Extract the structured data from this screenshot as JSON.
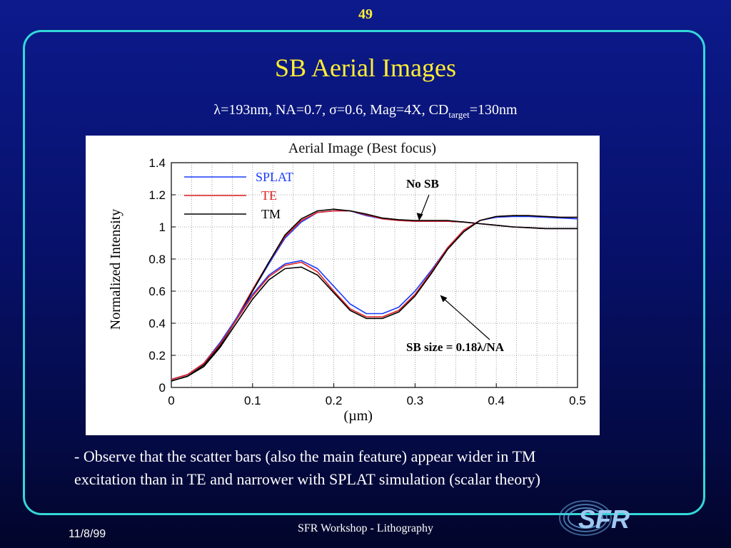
{
  "slide": {
    "number": "49",
    "title": "SB Aerial Images",
    "subtitle_main": "λ=193nm, NA=0.7, σ=0.6, Mag=4X, CD",
    "subtitle_sub": "target",
    "subtitle_end": "=130nm",
    "caption_line1": "- Observe that the scatter bars (also the main feature) appear wider in TM",
    "caption_line2": "excitation than in TE and narrower with SPLAT simulation (scalar theory)",
    "footer_date": "11/8/99",
    "footer_center": "SFR Workshop - Lithography",
    "logo_text": "SFR"
  },
  "colors": {
    "background": "#07116a",
    "frame": "#33d8d8",
    "title": "#ffee33",
    "splat": "#1a3cff",
    "te": "#e02020",
    "tm": "#000000"
  },
  "chart_data": {
    "type": "line",
    "title": "Aerial Image (Best focus)",
    "xlabel": "(µm)",
    "ylabel": "Normalized Intensity",
    "xlim": [
      0,
      0.5
    ],
    "ylim": [
      0,
      1.4
    ],
    "xticks": [
      "0",
      "0.1",
      "0.2",
      "0.3",
      "0.4",
      "0.5"
    ],
    "yticks": [
      "0",
      "0.2",
      "0.4",
      "0.6",
      "0.8",
      "1",
      "1.2",
      "1.4"
    ],
    "grid": true,
    "legend": [
      "SPLAT",
      "TE",
      "TM"
    ],
    "legend_position": "top-left",
    "annotations": [
      {
        "text": "No SB",
        "points_to": [
          0.305,
          1.03
        ]
      },
      {
        "text": "SB size = 0.18λ/NA",
        "points_to": [
          0.33,
          0.58
        ]
      }
    ],
    "series": [
      {
        "name": "SPLAT",
        "group": "No SB",
        "x": [
          0,
          0.02,
          0.04,
          0.06,
          0.08,
          0.1,
          0.12,
          0.14,
          0.16,
          0.18,
          0.2,
          0.22,
          0.24,
          0.26,
          0.28,
          0.3,
          0.32,
          0.34,
          0.36,
          0.38,
          0.4,
          0.42,
          0.44,
          0.46,
          0.48,
          0.5
        ],
        "y": [
          0.05,
          0.08,
          0.15,
          0.27,
          0.43,
          0.6,
          0.77,
          0.93,
          1.03,
          1.09,
          1.1,
          1.1,
          1.07,
          1.05,
          1.04,
          1.035,
          1.035,
          1.035,
          1.03,
          1.02,
          1.01,
          1.0,
          0.995,
          0.99,
          0.99,
          0.99
        ]
      },
      {
        "name": "TE",
        "group": "No SB",
        "x": [
          0,
          0.02,
          0.04,
          0.06,
          0.08,
          0.1,
          0.12,
          0.14,
          0.16,
          0.18,
          0.2,
          0.22,
          0.24,
          0.26,
          0.28,
          0.3,
          0.32,
          0.34,
          0.36,
          0.38,
          0.4,
          0.42,
          0.44,
          0.46,
          0.48,
          0.5
        ],
        "y": [
          0.05,
          0.08,
          0.15,
          0.27,
          0.43,
          0.61,
          0.78,
          0.94,
          1.04,
          1.09,
          1.1,
          1.1,
          1.075,
          1.05,
          1.04,
          1.035,
          1.035,
          1.035,
          1.03,
          1.02,
          1.01,
          1.0,
          0.995,
          0.99,
          0.99,
          0.99
        ]
      },
      {
        "name": "TM",
        "group": "No SB",
        "x": [
          0,
          0.02,
          0.04,
          0.06,
          0.08,
          0.1,
          0.12,
          0.14,
          0.16,
          0.18,
          0.2,
          0.22,
          0.24,
          0.26,
          0.28,
          0.3,
          0.32,
          0.34,
          0.36,
          0.38,
          0.4,
          0.42,
          0.44,
          0.46,
          0.48,
          0.5
        ],
        "y": [
          0.04,
          0.07,
          0.14,
          0.26,
          0.42,
          0.6,
          0.78,
          0.95,
          1.05,
          1.1,
          1.11,
          1.1,
          1.08,
          1.055,
          1.045,
          1.04,
          1.04,
          1.04,
          1.03,
          1.02,
          1.01,
          1.0,
          0.995,
          0.99,
          0.99,
          0.99
        ]
      },
      {
        "name": "SPLAT",
        "group": "SB",
        "x": [
          0,
          0.02,
          0.04,
          0.06,
          0.08,
          0.1,
          0.12,
          0.14,
          0.16,
          0.18,
          0.2,
          0.22,
          0.24,
          0.26,
          0.28,
          0.3,
          0.32,
          0.34,
          0.36,
          0.38,
          0.4,
          0.42,
          0.44,
          0.46,
          0.48,
          0.5
        ],
        "y": [
          0.05,
          0.08,
          0.15,
          0.28,
          0.43,
          0.58,
          0.7,
          0.77,
          0.79,
          0.74,
          0.63,
          0.52,
          0.46,
          0.46,
          0.5,
          0.6,
          0.73,
          0.87,
          0.98,
          1.04,
          1.06,
          1.065,
          1.065,
          1.06,
          1.055,
          1.05
        ]
      },
      {
        "name": "TE",
        "group": "SB",
        "x": [
          0,
          0.02,
          0.04,
          0.06,
          0.08,
          0.1,
          0.12,
          0.14,
          0.16,
          0.18,
          0.2,
          0.22,
          0.24,
          0.26,
          0.28,
          0.3,
          0.32,
          0.34,
          0.36,
          0.38,
          0.4,
          0.42,
          0.44,
          0.46,
          0.48,
          0.5
        ],
        "y": [
          0.05,
          0.08,
          0.15,
          0.27,
          0.42,
          0.57,
          0.69,
          0.76,
          0.78,
          0.72,
          0.6,
          0.49,
          0.44,
          0.44,
          0.48,
          0.58,
          0.72,
          0.87,
          0.98,
          1.04,
          1.065,
          1.07,
          1.07,
          1.065,
          1.06,
          1.06
        ]
      },
      {
        "name": "TM",
        "group": "SB",
        "x": [
          0,
          0.02,
          0.04,
          0.06,
          0.08,
          0.1,
          0.12,
          0.14,
          0.16,
          0.18,
          0.2,
          0.22,
          0.24,
          0.26,
          0.28,
          0.3,
          0.32,
          0.34,
          0.36,
          0.38,
          0.4,
          0.42,
          0.44,
          0.46,
          0.48,
          0.5
        ],
        "y": [
          0.04,
          0.07,
          0.13,
          0.25,
          0.4,
          0.55,
          0.67,
          0.74,
          0.75,
          0.7,
          0.59,
          0.48,
          0.43,
          0.43,
          0.47,
          0.57,
          0.71,
          0.86,
          0.97,
          1.04,
          1.065,
          1.07,
          1.07,
          1.065,
          1.06,
          1.06
        ]
      }
    ]
  }
}
